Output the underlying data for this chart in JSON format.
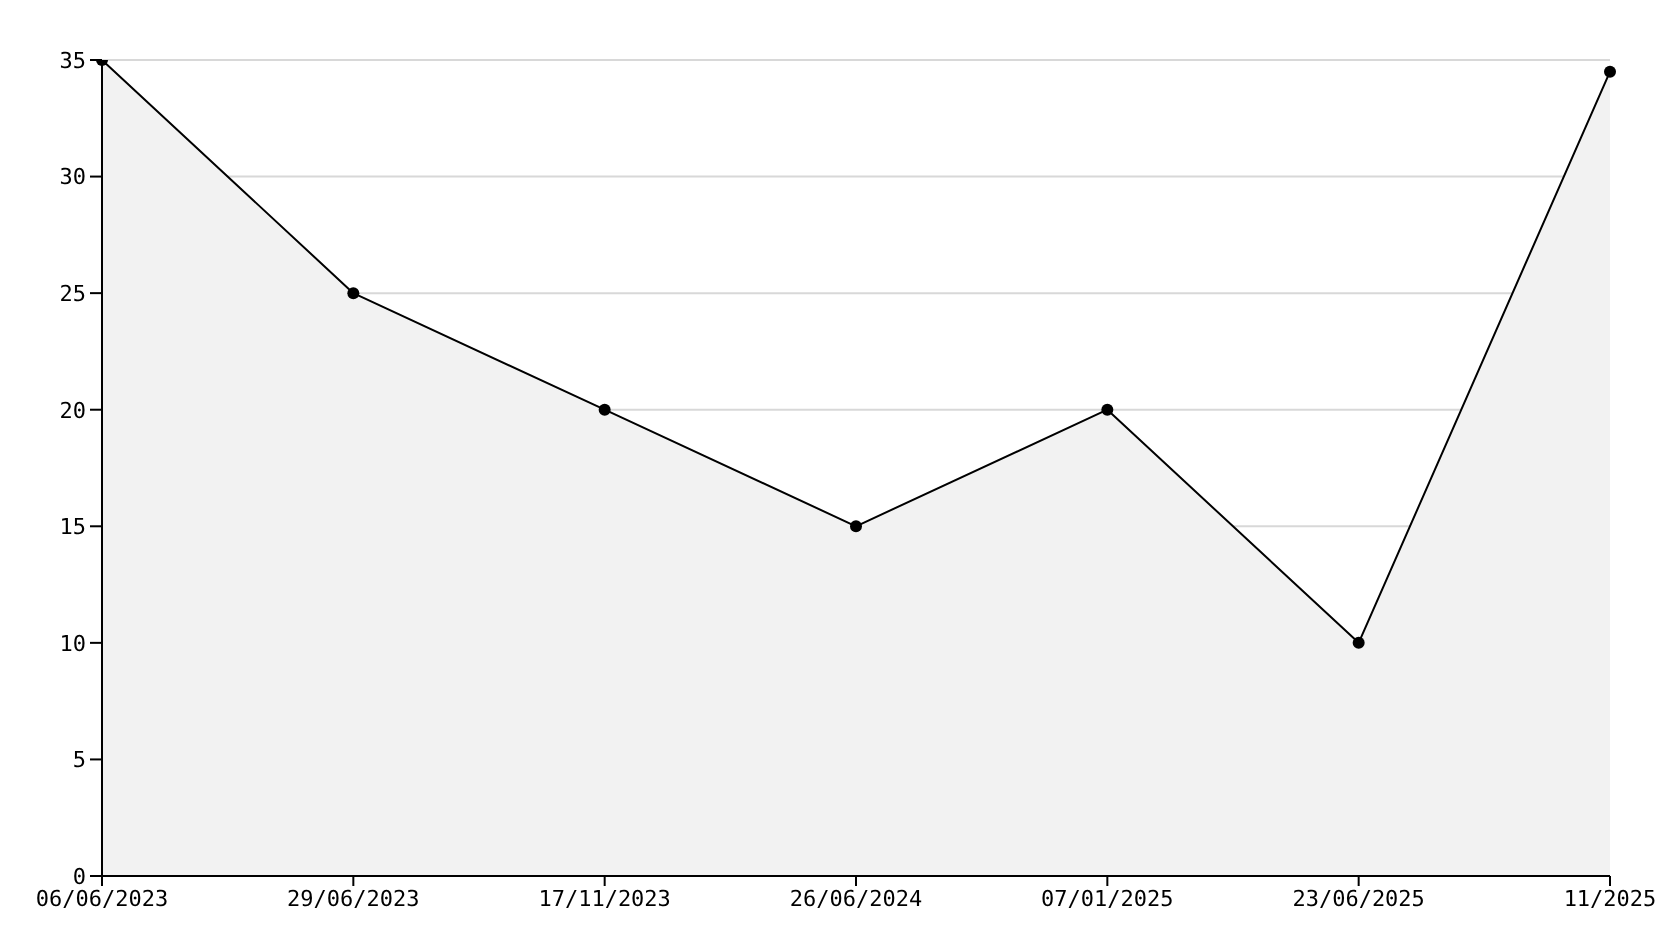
{
  "chart_data": {
    "type": "area",
    "categories": [
      "06/06/2023",
      "29/06/2023",
      "17/11/2023",
      "26/06/2024",
      "07/01/2025",
      "23/06/2025",
      "11/2025"
    ],
    "series": [
      {
        "color": "#000000",
        "values": [
          35,
          25,
          20,
          15,
          20,
          10,
          34.5
        ]
      }
    ],
    "ylim": [
      0,
      35
    ],
    "yticks": [
      0,
      5,
      10,
      15,
      20,
      25,
      30,
      35
    ],
    "grid": "y",
    "marker": "circle",
    "line_style": "solid"
  }
}
